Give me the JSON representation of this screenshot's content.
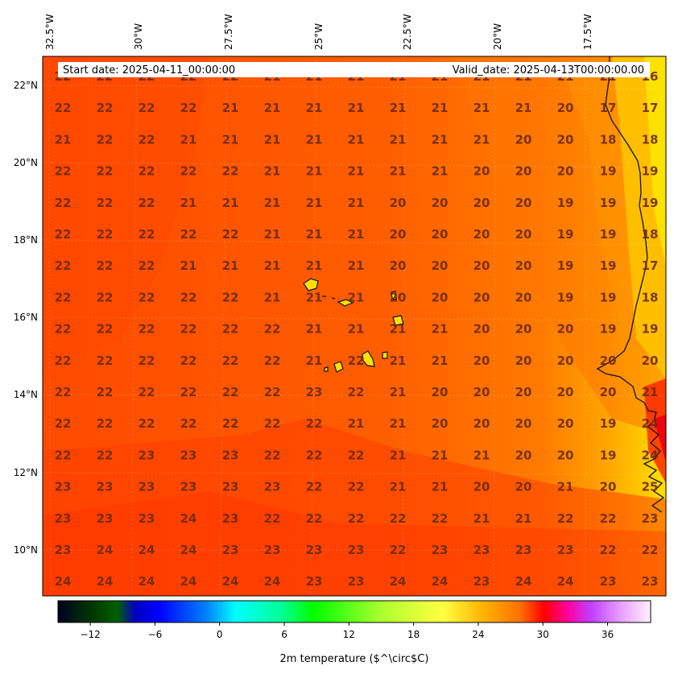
{
  "header": {
    "start_label": "Start date: 2025-04-11_00:00:00",
    "valid_label": "Valid_date: 2025-04-13T00:00:00.00"
  },
  "lon_ticks": [
    "32.5°W",
    "30°W",
    "27.5°W",
    "25°W",
    "22.5°W",
    "20°W",
    "17.5°W"
  ],
  "lat_ticks": [
    "22°N",
    "20°N",
    "18°N",
    "16°N",
    "14°N",
    "12°N",
    "10°N"
  ],
  "grid": {
    "rows": [
      [
        "22",
        "22",
        "22",
        "22",
        "22",
        "21",
        "21",
        "21",
        "21",
        "21",
        "21",
        "21",
        "21",
        "21",
        "16"
      ],
      [
        "22",
        "22",
        "22",
        "22",
        "21",
        "21",
        "21",
        "21",
        "21",
        "21",
        "21",
        "21",
        "20",
        "17",
        "17"
      ],
      [
        "21",
        "22",
        "22",
        "21",
        "21",
        "21",
        "21",
        "21",
        "21",
        "21",
        "21",
        "20",
        "20",
        "18",
        "18"
      ],
      [
        "22",
        "22",
        "22",
        "22",
        "22",
        "21",
        "21",
        "21",
        "21",
        "21",
        "20",
        "20",
        "20",
        "19",
        "19"
      ],
      [
        "22",
        "22",
        "22",
        "21",
        "21",
        "21",
        "21",
        "21",
        "20",
        "20",
        "20",
        "20",
        "19",
        "19",
        "19"
      ],
      [
        "22",
        "22",
        "22",
        "22",
        "22",
        "21",
        "21",
        "21",
        "20",
        "20",
        "20",
        "20",
        "19",
        "19",
        "18"
      ],
      [
        "22",
        "22",
        "22",
        "21",
        "21",
        "21",
        "21",
        "21",
        "20",
        "20",
        "20",
        "20",
        "19",
        "19",
        "17"
      ],
      [
        "22",
        "22",
        "22",
        "22",
        "22",
        "21",
        "21",
        "21",
        "20",
        "20",
        "20",
        "20",
        "19",
        "19",
        "18"
      ],
      [
        "22",
        "22",
        "22",
        "22",
        "22",
        "22",
        "21",
        "21",
        "21",
        "21",
        "20",
        "20",
        "20",
        "19",
        "19"
      ],
      [
        "22",
        "22",
        "22",
        "22",
        "22",
        "22",
        "21",
        "22",
        "21",
        "21",
        "20",
        "20",
        "20",
        "20",
        "20"
      ],
      [
        "22",
        "22",
        "22",
        "22",
        "22",
        "22",
        "23",
        "22",
        "21",
        "20",
        "20",
        "20",
        "20",
        "20",
        "21"
      ],
      [
        "22",
        "22",
        "22",
        "22",
        "22",
        "22",
        "22",
        "21",
        "21",
        "20",
        "20",
        "20",
        "20",
        "19",
        "24"
      ],
      [
        "22",
        "22",
        "23",
        "23",
        "23",
        "22",
        "22",
        "22",
        "21",
        "21",
        "21",
        "20",
        "20",
        "19",
        "24"
      ],
      [
        "23",
        "23",
        "23",
        "23",
        "23",
        "23",
        "22",
        "22",
        "21",
        "21",
        "20",
        "20",
        "21",
        "20",
        "25"
      ],
      [
        "23",
        "23",
        "23",
        "24",
        "23",
        "22",
        "22",
        "22",
        "22",
        "22",
        "21",
        "21",
        "22",
        "22",
        "23"
      ],
      [
        "23",
        "24",
        "24",
        "24",
        "23",
        "23",
        "23",
        "23",
        "22",
        "23",
        "23",
        "23",
        "23",
        "22",
        "22"
      ],
      [
        "24",
        "24",
        "24",
        "24",
        "24",
        "24",
        "23",
        "23",
        "24",
        "24",
        "23",
        "24",
        "24",
        "23",
        "23"
      ]
    ]
  },
  "colorbar": {
    "ticks": [
      "−12",
      "−6",
      "0",
      "6",
      "12",
      "18",
      "24",
      "30",
      "36"
    ],
    "label": "2m temperature ($^\\circ$C)",
    "range": [
      -15,
      40
    ],
    "tick_values": [
      -12,
      -6,
      0,
      6,
      12,
      18,
      24,
      30,
      36
    ]
  },
  "colors": {
    "field_main": "#ff5a00",
    "field_warm": "#ff3a00",
    "field_cool": "#ff8c00",
    "field_coast": "#ffd400",
    "value_text": "#6a2a12"
  }
}
